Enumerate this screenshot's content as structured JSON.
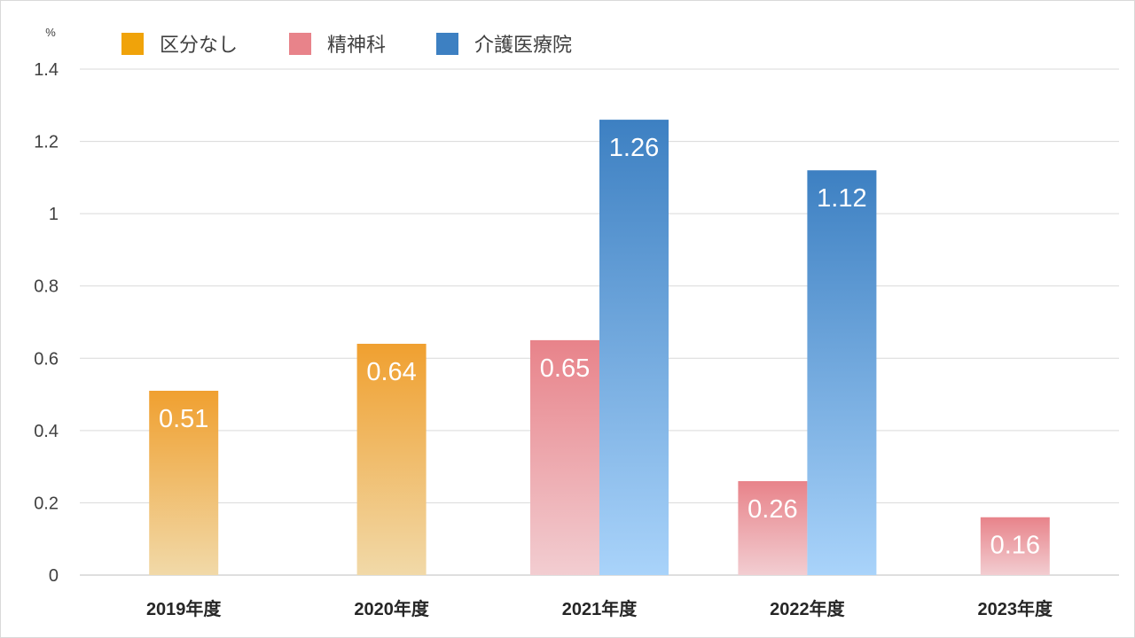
{
  "chart_data": {
    "type": "bar",
    "unit_label": "%",
    "categories": [
      "2019年度",
      "2020年度",
      "2021年度",
      "2022年度",
      "2023年度"
    ],
    "series": [
      {
        "name": "区分なし",
        "color": "#f0a30a",
        "values": [
          0.51,
          0.64,
          null,
          null,
          null
        ]
      },
      {
        "name": "精神科",
        "color": "#e8838a",
        "values": [
          null,
          null,
          0.65,
          0.26,
          0.16
        ]
      },
      {
        "name": "介護医療院",
        "color": "#3d80c2",
        "values": [
          null,
          null,
          1.26,
          1.12,
          null
        ]
      }
    ],
    "ylim": [
      0,
      1.4
    ],
    "yticks": [
      "0",
      "0.2",
      "0.4",
      "0.6",
      "0.8",
      "1",
      "1.2",
      "1.4"
    ],
    "grid": true,
    "legend_position": "top-left",
    "data_labels": true
  }
}
